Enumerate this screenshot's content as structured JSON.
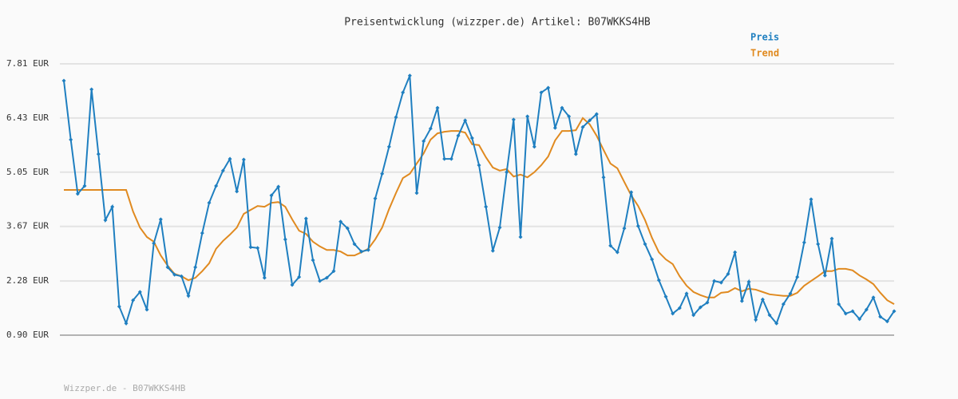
{
  "chart_data": {
    "type": "line",
    "title": "Preisentwicklung (wizzper.de) Artikel: B07WKKS4HB",
    "footer": "Wizzper.de - B07WKKS4HB",
    "ylim": [
      0.9,
      7.81
    ],
    "yticks": [
      {
        "value": 0.9,
        "label": "0.90 EUR"
      },
      {
        "value": 2.28,
        "label": "2.28 EUR"
      },
      {
        "value": 3.67,
        "label": "3.67 EUR"
      },
      {
        "value": 5.05,
        "label": "5.05 EUR"
      },
      {
        "value": 6.43,
        "label": "6.43 EUR"
      },
      {
        "value": 7.81,
        "label": "7.81 EUR"
      }
    ],
    "grid": true,
    "legend": "top-right",
    "series": [
      {
        "name": "Preis",
        "color": "#1f7fc0",
        "markers": true,
        "values": [
          7.38,
          5.88,
          4.5,
          4.7,
          7.16,
          5.51,
          3.83,
          4.17,
          1.63,
          1.2,
          1.79,
          2.0,
          1.55,
          3.24,
          3.85,
          2.63,
          2.44,
          2.4,
          1.9,
          2.63,
          3.5,
          4.27,
          4.7,
          5.09,
          5.39,
          4.56,
          5.37,
          3.14,
          3.12,
          2.36,
          4.46,
          4.68,
          3.34,
          2.18,
          2.38,
          3.87,
          2.81,
          2.28,
          2.36,
          2.53,
          3.79,
          3.62,
          3.22,
          3.03,
          3.07,
          4.38,
          5.01,
          5.7,
          6.45,
          7.08,
          7.51,
          4.52,
          5.84,
          6.16,
          6.69,
          5.39,
          5.39,
          5.98,
          6.37,
          5.92,
          5.23,
          4.17,
          3.05,
          3.64,
          5.05,
          6.39,
          3.4,
          6.47,
          5.7,
          7.08,
          7.2,
          6.18,
          6.69,
          6.47,
          5.51,
          6.2,
          6.37,
          6.53,
          4.92,
          3.18,
          3.01,
          3.62,
          4.54,
          3.68,
          3.22,
          2.83,
          2.3,
          1.88,
          1.45,
          1.59,
          1.96,
          1.41,
          1.61,
          1.73,
          2.28,
          2.24,
          2.46,
          3.01,
          1.77,
          2.26,
          1.29,
          1.81,
          1.41,
          1.2,
          1.69,
          1.96,
          2.38,
          3.26,
          4.36,
          3.22,
          2.42,
          3.36,
          1.69,
          1.45,
          1.51,
          1.31,
          1.55,
          1.86,
          1.37,
          1.25,
          1.51
        ]
      },
      {
        "name": "Trend",
        "color": "#e08a20",
        "markers": false,
        "values": [
          4.6,
          4.6,
          4.6,
          4.6,
          4.6,
          4.6,
          4.6,
          4.6,
          4.6,
          4.6,
          4.05,
          3.64,
          3.4,
          3.28,
          2.93,
          2.67,
          2.46,
          2.4,
          2.3,
          2.36,
          2.53,
          2.73,
          3.1,
          3.3,
          3.46,
          3.64,
          3.99,
          4.09,
          4.19,
          4.17,
          4.27,
          4.29,
          4.17,
          3.85,
          3.56,
          3.48,
          3.28,
          3.16,
          3.07,
          3.07,
          3.03,
          2.93,
          2.93,
          3.01,
          3.1,
          3.34,
          3.64,
          4.11,
          4.52,
          4.9,
          5.01,
          5.27,
          5.53,
          5.88,
          6.04,
          6.08,
          6.1,
          6.1,
          6.06,
          5.76,
          5.74,
          5.43,
          5.17,
          5.09,
          5.13,
          4.94,
          4.99,
          4.92,
          5.05,
          5.23,
          5.45,
          5.86,
          6.1,
          6.1,
          6.12,
          6.43,
          6.27,
          5.98,
          5.62,
          5.27,
          5.15,
          4.8,
          4.46,
          4.19,
          3.83,
          3.38,
          3.01,
          2.83,
          2.71,
          2.4,
          2.16,
          2.0,
          1.92,
          1.86,
          1.86,
          1.98,
          2.0,
          2.1,
          2.02,
          2.08,
          2.06,
          2.0,
          1.94,
          1.92,
          1.9,
          1.9,
          1.98,
          2.16,
          2.28,
          2.4,
          2.53,
          2.53,
          2.59,
          2.59,
          2.55,
          2.42,
          2.32,
          2.2,
          1.98,
          1.79,
          1.69
        ]
      }
    ]
  }
}
